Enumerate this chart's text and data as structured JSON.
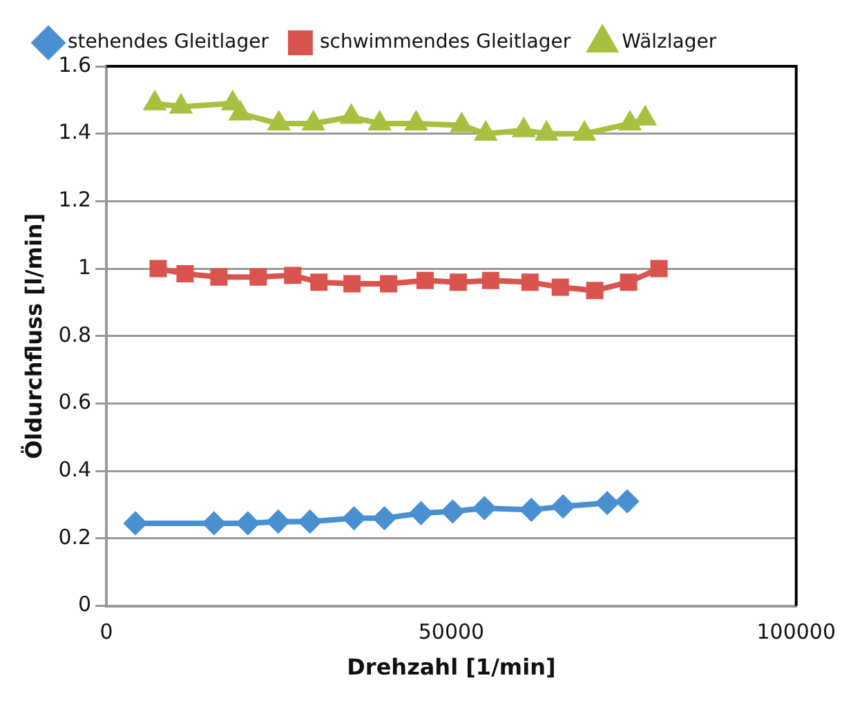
{
  "chart_data": {
    "type": "line",
    "xlabel": "Drehzahl [1/min]",
    "ylabel": "Öldurchfluss [l/min]",
    "xlim": [
      0,
      100000
    ],
    "xticks": [
      0,
      50000,
      100000
    ],
    "ylim": [
      0,
      1.6
    ],
    "yticks": [
      0,
      0.2,
      0.4,
      0.6,
      0.8,
      1,
      1.2,
      1.4,
      1.6
    ],
    "grid": "y",
    "legend": "top",
    "series": [
      {
        "name": "stehendes Gleitlager",
        "color": "#4a90d0",
        "marker": "diamond",
        "x": [
          4200,
          15600,
          20500,
          24900,
          29500,
          35900,
          40300,
          45600,
          50200,
          54800,
          61600,
          66200,
          71700,
          72600,
          75500
        ],
        "values": [
          0.245,
          0.245,
          0.245,
          0.25,
          0.25,
          0.26,
          0.26,
          0.275,
          0.28,
          0.29,
          0.285,
          0.295,
          null,
          0.305,
          0.31
        ]
      },
      {
        "name": "schwimmendes Gleitlager",
        "color": "#d9534f",
        "marker": "square",
        "x": [
          7500,
          11400,
          16300,
          22000,
          27000,
          30800,
          35600,
          40900,
          46200,
          51000,
          55700,
          61400,
          65800,
          70800,
          75700,
          80100
        ],
        "values": [
          1.0,
          0.985,
          0.975,
          0.975,
          0.98,
          0.96,
          0.955,
          0.955,
          0.965,
          0.96,
          0.965,
          0.96,
          0.945,
          0.935,
          0.96,
          1.0
        ]
      },
      {
        "name": "Wälzlager",
        "color": "#a8c040",
        "marker": "triangle",
        "x": [
          7000,
          10800,
          18300,
          19400,
          25000,
          30000,
          35500,
          39600,
          44900,
          51500,
          55000,
          60500,
          63800,
          69300,
          75900,
          78100
        ],
        "values": [
          1.49,
          1.48,
          1.49,
          1.46,
          1.43,
          1.43,
          1.45,
          1.43,
          1.43,
          1.425,
          1.4,
          1.41,
          1.4,
          1.4,
          1.43,
          1.445
        ]
      }
    ]
  }
}
